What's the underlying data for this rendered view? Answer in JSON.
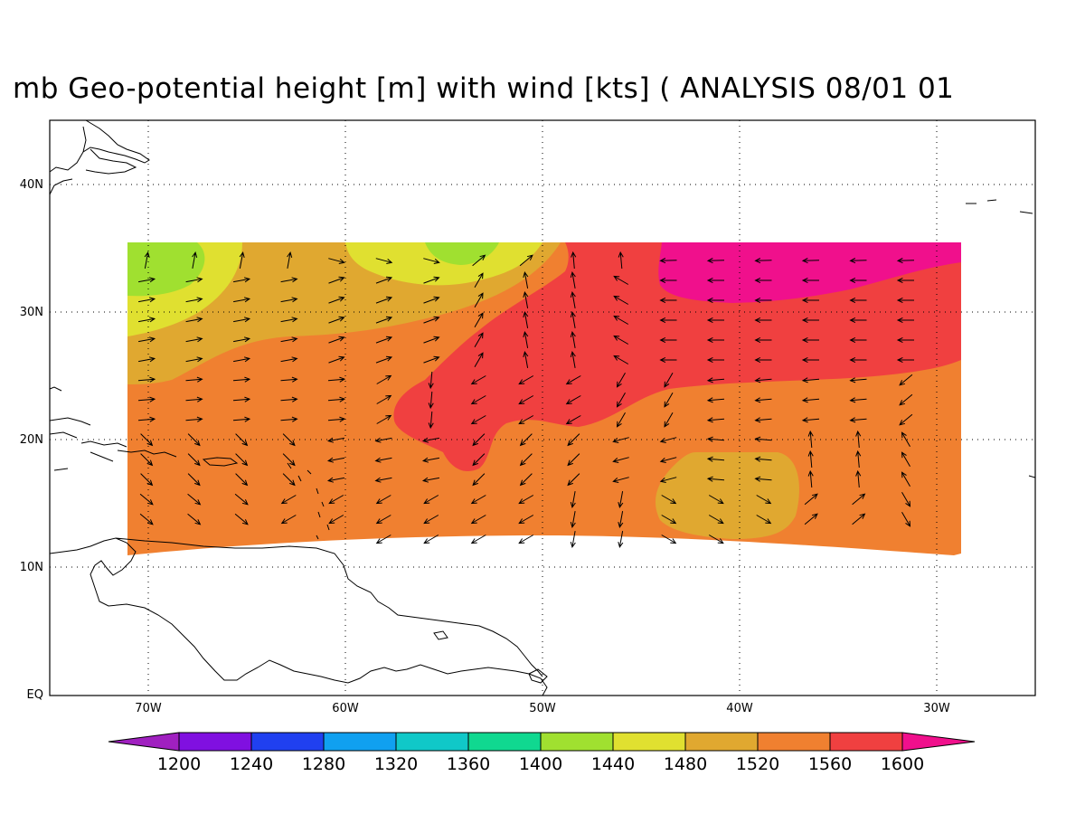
{
  "title": "mb Geo-potential height [m] with wind [kts] ( ANALYSIS 08/01 01",
  "lat_labels": [
    "40N",
    "30N",
    "20N",
    "10N",
    "EQ"
  ],
  "lon_labels": [
    "70W",
    "60W",
    "50W",
    "40W",
    "30W"
  ],
  "colorbar": {
    "labels": [
      "1200",
      "1240",
      "1280",
      "1320",
      "1360",
      "1400",
      "1440",
      "1480",
      "1520",
      "1560",
      "1600"
    ],
    "colors": [
      "#a020c0",
      "#8010e0",
      "#2040f0",
      "#10a0f0",
      "#10c8c8",
      "#10d890",
      "#a0e030",
      "#e0e030",
      "#e0a830",
      "#f08030",
      "#f04040",
      "#f0108c"
    ]
  },
  "field_colors": {
    "c1440": "#a0e030",
    "c1480": "#e0e030",
    "c1520": "#e0a830",
    "c1560": "#f08030",
    "c1600": "#f04040",
    "c1640": "#f0108c"
  },
  "chart_data": {
    "type": "heatmap",
    "title": "mb Geo-potential height [m] with wind [kts] ( ANALYSIS 08/01 01",
    "xlim": [
      -75,
      -25
    ],
    "ylim": [
      0,
      45
    ],
    "contour_levels": [
      1200,
      1240,
      1280,
      1320,
      1360,
      1400,
      1440,
      1480,
      1520,
      1560,
      1600
    ]
  }
}
